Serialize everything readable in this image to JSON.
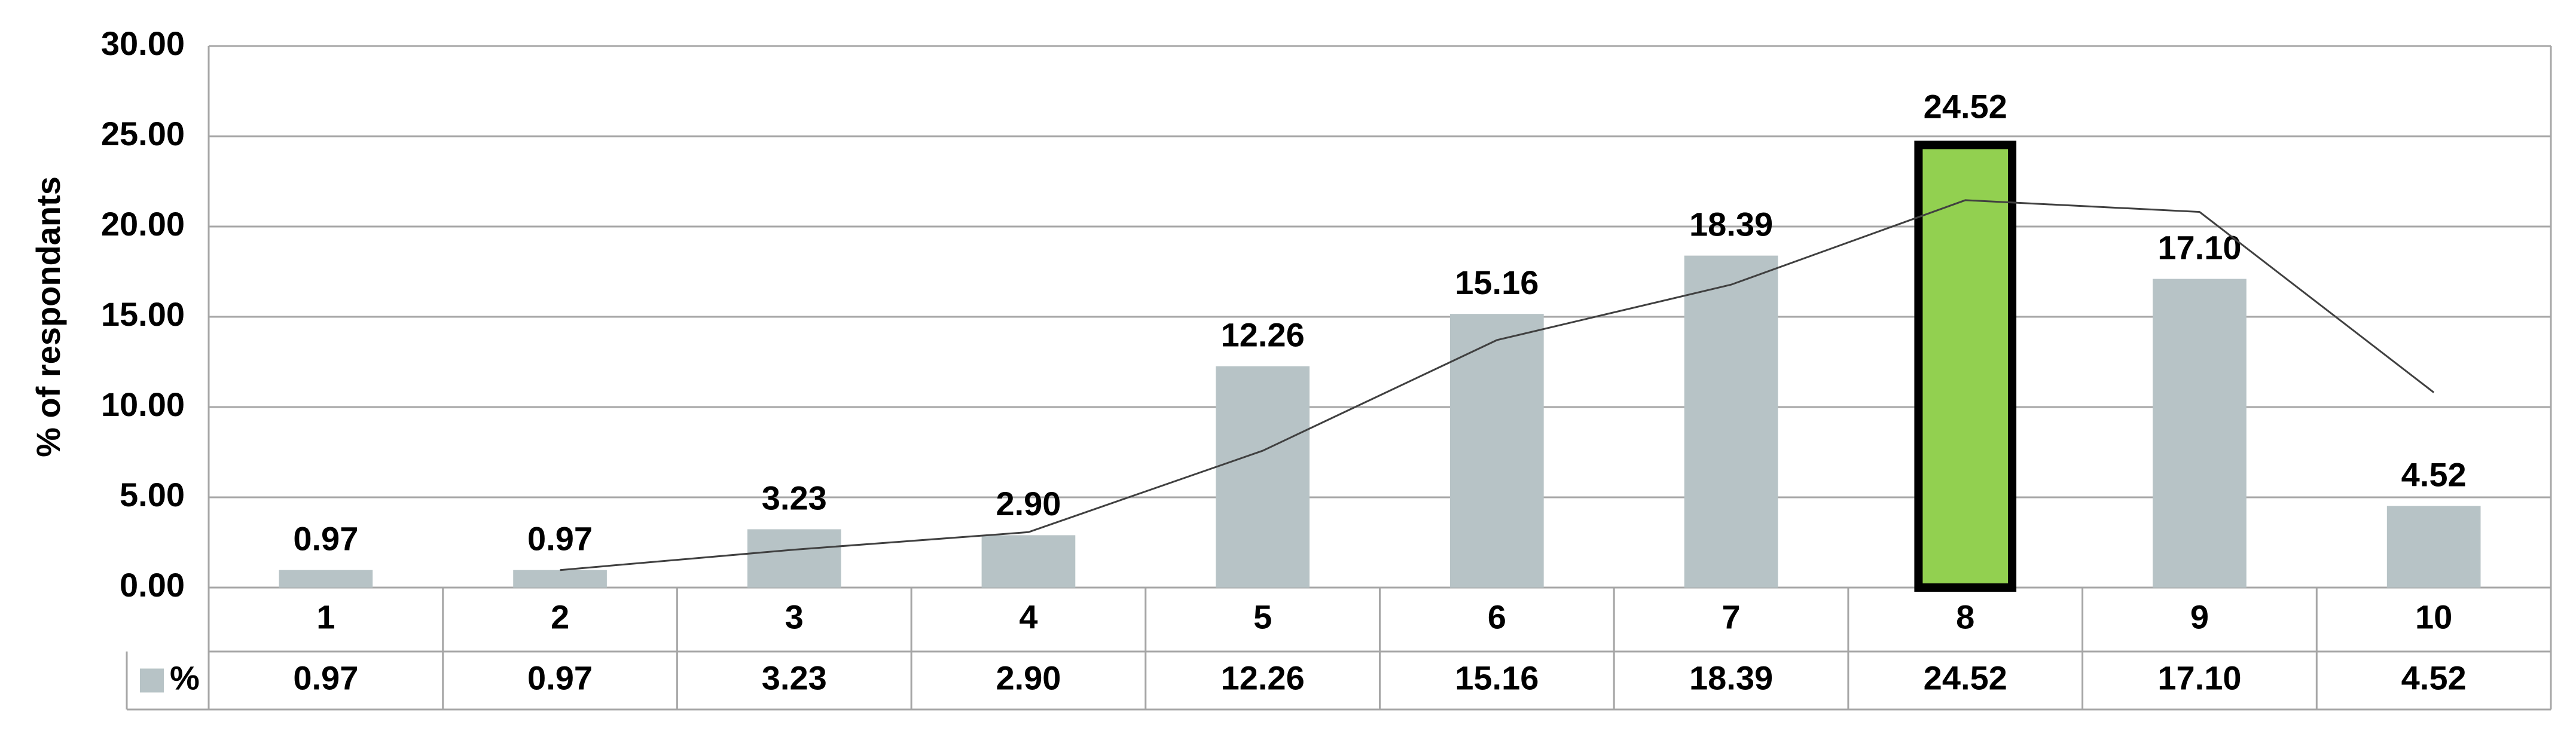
{
  "chart_data": {
    "type": "bar",
    "y_label": "% of respondants",
    "categories": [
      "1",
      "2",
      "3",
      "4",
      "5",
      "6",
      "7",
      "8",
      "9",
      "10"
    ],
    "series": [
      {
        "name": "%",
        "color": "#b7c3c6",
        "values": [
          0.97,
          0.97,
          3.23,
          2.9,
          12.26,
          15.16,
          18.39,
          24.52,
          17.1,
          4.52
        ],
        "value_labels": [
          "0.97",
          "0.97",
          "3.23",
          "2.90",
          "12.26",
          "15.16",
          "18.39",
          "24.52",
          "17.10",
          "4.52"
        ],
        "point_colors": [
          "#b7c3c6",
          "#b7c3c6",
          "#b7c3c6",
          "#b7c3c6",
          "#b7c3c6",
          "#b7c3c6",
          "#b7c3c6",
          "#92d050",
          "#b7c3c6",
          "#b7c3c6"
        ],
        "outlined": [
          false,
          false,
          false,
          false,
          false,
          false,
          false,
          true,
          false,
          false
        ]
      }
    ],
    "trendline": {
      "color": "#404040",
      "values": [
        null,
        0.97,
        2.1,
        3.07,
        7.58,
        13.71,
        16.78,
        21.46,
        20.81,
        10.81
      ]
    },
    "ylim": [
      0,
      30
    ],
    "yticks": [
      {
        "value": 0,
        "label": "0.00"
      },
      {
        "value": 5,
        "label": "5.00"
      },
      {
        "value": 10,
        "label": "10.00"
      },
      {
        "value": 15,
        "label": "15.00"
      },
      {
        "value": 20,
        "label": "20.00"
      },
      {
        "value": 25,
        "label": "25.00"
      },
      {
        "value": 30,
        "label": "30.00"
      }
    ],
    "grid": true,
    "data_table": true
  }
}
